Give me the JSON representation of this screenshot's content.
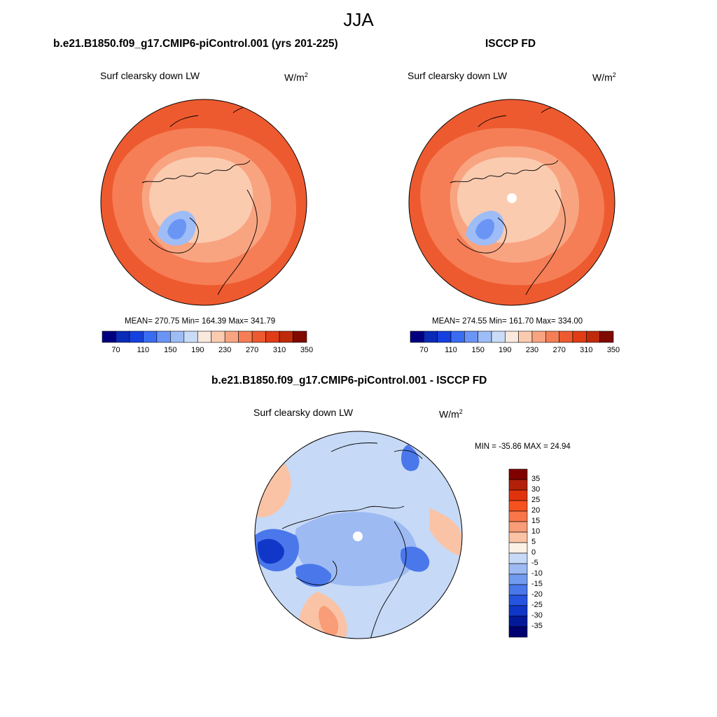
{
  "figure": {
    "title": "JJA",
    "variable": "Surf clearsky down LW",
    "units_base": "W/m",
    "units_exp": "2"
  },
  "panels": [
    {
      "title": "b.e21.B1850.f09_g17.CMIP6-piControl.001 (yrs 201-225)",
      "stats": "MEAN= 270.75  Min= 164.39  Max= 341.79",
      "pole_hole": false
    },
    {
      "title": "ISCCP FD",
      "stats": "MEAN= 274.55  Min= 161.70  Max= 334.00",
      "pole_hole": true
    },
    {
      "title": "b.e21.B1850.f09_g17.CMIP6-piControl.001 - ISCCP FD",
      "stats": "MIN = -35.86 MAX =  24.94",
      "pole_hole": true
    }
  ],
  "colorbar_abs": {
    "orientation": "horizontal",
    "tick_labels": [
      "70",
      "110",
      "150",
      "190",
      "230",
      "270",
      "310",
      "350"
    ],
    "colors": [
      "#00007f",
      "#0a2bb8",
      "#1440e0",
      "#3a6cf2",
      "#6b95f5",
      "#9ebdf7",
      "#c9dbf7",
      "#f9e8dc",
      "#fbcbb0",
      "#f9a481",
      "#f57e56",
      "#ee5a2f",
      "#e03c16",
      "#bf2a0b",
      "#7f0a00"
    ]
  },
  "colorbar_diff": {
    "orientation": "vertical",
    "tick_labels": [
      "35",
      "30",
      "25",
      "20",
      "15",
      "10",
      "5",
      "0",
      "-5",
      "-10",
      "-15",
      "-20",
      "-25",
      "-30",
      "-35"
    ],
    "colors": [
      "#800000",
      "#b3200a",
      "#e0330d",
      "#f5521f",
      "#f8764a",
      "#f99c78",
      "#fbc3a5",
      "#fdf1e6",
      "#c6d9f6",
      "#9dbaf3",
      "#729bf0",
      "#4a77ea",
      "#2654e0",
      "#1037c7",
      "#03199a",
      "#000070"
    ]
  },
  "map_colors": {
    "warm_outer": "#ee5a2f",
    "warm_mid": "#f57e56",
    "warm_inner": "#f9a481",
    "pale": "#fbcbb0",
    "cool": "#9ebdf7",
    "cold": "#6b95f5",
    "diff_base": "#c6d9f6",
    "diff_mid": "#9dbaf3",
    "diff_dark": "#4a77ea",
    "diff_darkest": "#1037c7",
    "diff_warm": "#fbc3a5",
    "diff_hot": "#f99c78"
  }
}
